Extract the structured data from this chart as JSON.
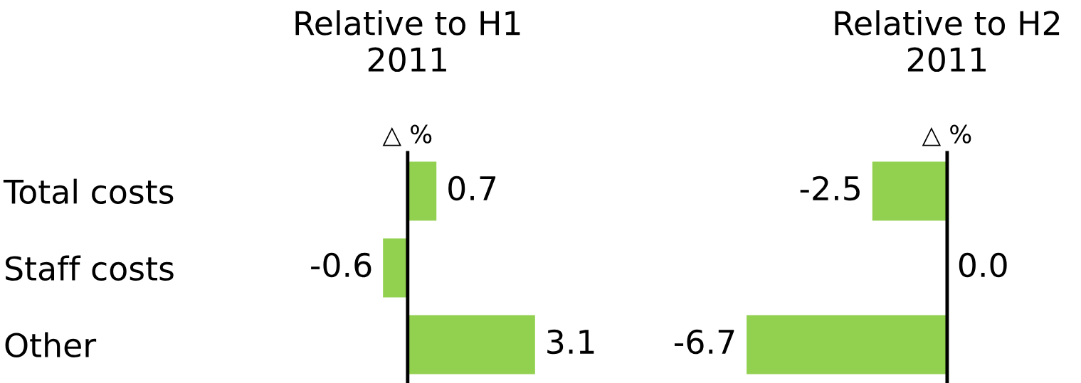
{
  "chart_data": [
    {
      "type": "bar",
      "orientation": "horizontal",
      "title": "Relative to H1\n2011",
      "xlabel": "△ %",
      "categories": [
        "Total costs",
        "Staff costs",
        "Other"
      ],
      "values": [
        0.7,
        -0.6,
        3.1
      ],
      "color": "#92d050",
      "data_labels": true
    },
    {
      "type": "bar",
      "orientation": "horizontal",
      "title": "Relative to H2\n2011",
      "xlabel": "△ %",
      "categories": [
        null,
        null,
        null
      ],
      "values": [
        -2.5,
        0.0,
        -6.7
      ],
      "value_labels": [
        "-2.5",
        "0.0",
        "-6.7"
      ],
      "color": "#92d050"
    }
  ]
}
